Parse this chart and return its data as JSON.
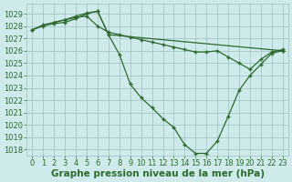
{
  "title": "Graphe pression niveau de la mer (hPa)",
  "bg_color": "#ceeaea",
  "grid_color": "#9bbfbf",
  "line_color": "#2d6a2d",
  "marker_color": "#2d6a2d",
  "xlim": [
    -0.5,
    23.5
  ],
  "ylim": [
    1017.5,
    1029.8
  ],
  "yticks": [
    1018,
    1019,
    1020,
    1021,
    1022,
    1023,
    1024,
    1025,
    1026,
    1027,
    1028,
    1029
  ],
  "xticks": [
    0,
    1,
    2,
    3,
    4,
    5,
    6,
    7,
    8,
    9,
    10,
    11,
    12,
    13,
    14,
    15,
    16,
    17,
    18,
    19,
    20,
    21,
    22,
    23
  ],
  "series1_x": [
    0,
    1,
    2,
    3,
    4,
    5,
    6,
    7,
    8,
    9,
    10,
    11,
    12,
    13,
    14,
    15,
    16,
    17,
    18,
    19,
    20,
    21,
    22,
    23
  ],
  "series1_y": [
    1027.7,
    1028.0,
    1028.2,
    1028.3,
    1028.6,
    1029.0,
    1029.2,
    1027.3,
    1025.7,
    1023.3,
    1022.2,
    1021.4,
    1020.5,
    1019.8,
    1018.4,
    1017.7,
    1017.7,
    1018.7,
    1020.7,
    1022.8,
    1024.0,
    1024.9,
    1025.8,
    1026.0
  ],
  "series2_x": [
    0,
    1,
    2,
    3,
    4,
    5,
    6,
    7,
    8,
    9,
    10,
    11,
    12,
    13,
    14,
    15,
    16,
    17,
    18,
    19,
    20,
    21,
    22,
    23
  ],
  "series2_y": [
    1027.7,
    1028.1,
    1028.3,
    1028.5,
    1028.7,
    1028.8,
    1028.0,
    1027.5,
    1027.3,
    1027.1,
    1026.9,
    1026.7,
    1026.5,
    1026.3,
    1026.1,
    1025.9,
    1025.9,
    1026.0,
    1025.5,
    1025.0,
    1024.5,
    1025.3,
    1025.9,
    1026.1
  ],
  "series3_x": [
    2,
    3,
    4,
    5,
    6,
    7,
    23
  ],
  "series3_y": [
    1028.3,
    1028.5,
    1028.8,
    1029.05,
    1029.2,
    1027.3,
    1026.0
  ],
  "title_fontsize": 7.5,
  "tick_fontsize": 6
}
